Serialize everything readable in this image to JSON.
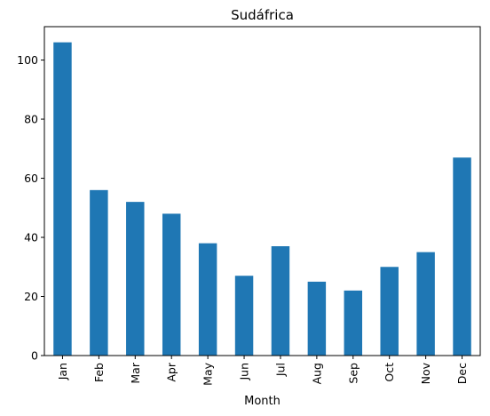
{
  "chart_data": {
    "type": "bar",
    "title": "Sudáfrica",
    "xlabel": "Month",
    "ylabel": "",
    "categories": [
      "Jan",
      "Feb",
      "Mar",
      "Apr",
      "May",
      "Jun",
      "Jul",
      "Aug",
      "Sep",
      "Oct",
      "Nov",
      "Dec"
    ],
    "values": [
      106,
      56,
      52,
      48,
      38,
      27,
      37,
      25,
      22,
      30,
      35,
      67
    ],
    "ylim": [
      0,
      111.3
    ],
    "yticks": [
      0,
      20,
      40,
      60,
      80,
      100
    ],
    "ytick_labels": [
      "0",
      "20",
      "40",
      "60",
      "80",
      "100"
    ],
    "bar_color": "#1f77b4",
    "grid": false,
    "legend": "none"
  }
}
